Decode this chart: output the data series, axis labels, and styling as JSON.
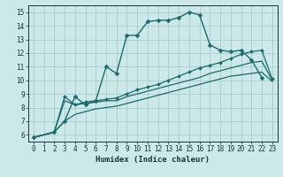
{
  "title": "",
  "xlabel": "Humidex (Indice chaleur)",
  "ylabel": "",
  "bg_color": "#cce8e8",
  "grid_color": "#aacccc",
  "line_color": "#1a6b6b",
  "xlim": [
    -0.5,
    23.5
  ],
  "ylim": [
    5.5,
    15.5
  ],
  "xticks": [
    0,
    1,
    2,
    3,
    4,
    5,
    6,
    7,
    8,
    9,
    10,
    11,
    12,
    13,
    14,
    15,
    16,
    17,
    18,
    19,
    20,
    21,
    22,
    23
  ],
  "yticks": [
    6,
    7,
    8,
    9,
    10,
    11,
    12,
    13,
    14,
    15
  ],
  "series": [
    {
      "x": [
        0,
        2,
        3,
        4,
        5,
        6,
        7,
        8,
        9,
        10,
        11,
        12,
        13,
        14,
        15,
        16,
        17,
        18,
        19,
        20,
        21,
        22
      ],
      "y": [
        5.8,
        6.2,
        7.0,
        8.8,
        8.2,
        8.5,
        11.0,
        10.5,
        13.3,
        13.3,
        14.3,
        14.4,
        14.4,
        14.6,
        15.0,
        14.8,
        12.6,
        12.2,
        12.1,
        12.2,
        11.5,
        10.2
      ],
      "marker": "D",
      "markersize": 2.5,
      "linewidth": 1.0
    },
    {
      "x": [
        0,
        2,
        3,
        4,
        5,
        6,
        7,
        8,
        9,
        10,
        11,
        12,
        13,
        14,
        15,
        16,
        17,
        18,
        19,
        20,
        21,
        22,
        23
      ],
      "y": [
        5.8,
        6.2,
        8.8,
        8.2,
        8.4,
        8.5,
        8.6,
        8.7,
        9.0,
        9.3,
        9.5,
        9.7,
        10.0,
        10.3,
        10.6,
        10.9,
        11.1,
        11.3,
        11.6,
        11.9,
        12.1,
        12.2,
        10.1
      ],
      "marker": "D",
      "markersize": 2.0,
      "linewidth": 0.9
    },
    {
      "x": [
        0,
        2,
        3,
        4,
        5,
        6,
        7,
        8,
        9,
        10,
        11,
        12,
        13,
        14,
        15,
        16,
        17,
        18,
        19,
        20,
        21,
        22,
        23
      ],
      "y": [
        5.8,
        6.2,
        8.5,
        8.2,
        8.3,
        8.4,
        8.5,
        8.5,
        8.8,
        9.0,
        9.2,
        9.4,
        9.6,
        9.8,
        10.0,
        10.2,
        10.5,
        10.7,
        10.9,
        11.1,
        11.3,
        11.4,
        10.0
      ],
      "marker": null,
      "markersize": 0,
      "linewidth": 0.9
    },
    {
      "x": [
        0,
        2,
        3,
        4,
        5,
        6,
        7,
        8,
        9,
        10,
        11,
        12,
        13,
        14,
        15,
        16,
        17,
        18,
        19,
        20,
        21,
        22,
        23
      ],
      "y": [
        5.8,
        6.2,
        7.0,
        7.5,
        7.7,
        7.9,
        8.0,
        8.1,
        8.3,
        8.5,
        8.7,
        8.9,
        9.1,
        9.3,
        9.5,
        9.7,
        9.9,
        10.1,
        10.3,
        10.4,
        10.5,
        10.6,
        9.9
      ],
      "marker": null,
      "markersize": 0,
      "linewidth": 0.9
    }
  ]
}
